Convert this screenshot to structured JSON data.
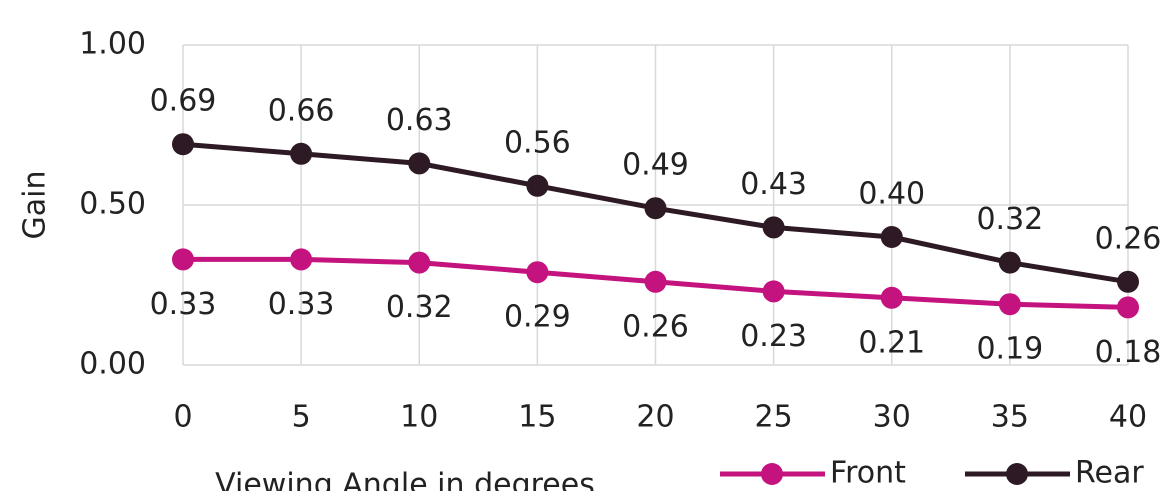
{
  "chart_data": {
    "type": "line",
    "x_label": "Viewing Angle in degrees",
    "y_label": "Gain",
    "x": [
      0,
      5,
      10,
      15,
      20,
      25,
      30,
      35,
      40
    ],
    "xlim": [
      0,
      40
    ],
    "xticks": [
      0,
      5,
      10,
      15,
      20,
      25,
      30,
      35,
      40
    ],
    "ylim": [
      0,
      1
    ],
    "yticks": [
      {
        "value": 0,
        "label": "0.00"
      },
      {
        "value": 0.5,
        "label": "0.50"
      },
      {
        "value": 1,
        "label": "1.00"
      }
    ],
    "grid": true,
    "legend": "bottom-right",
    "series": [
      {
        "name": "Front",
        "color": "#c4127f",
        "values": [
          0.33,
          0.33,
          0.32,
          0.29,
          0.26,
          0.23,
          0.21,
          0.19,
          0.18
        ],
        "value_labels": [
          "0.33",
          "0.33",
          "0.32",
          "0.29",
          "0.26",
          "0.23",
          "0.21",
          "0.19",
          "0.18"
        ]
      },
      {
        "name": "Rear",
        "color": "#2d1a24",
        "values": [
          0.69,
          0.66,
          0.63,
          0.56,
          0.49,
          0.43,
          0.4,
          0.32,
          0.26
        ],
        "value_labels": [
          "0.69",
          "0.66",
          "0.63",
          "0.56",
          "0.49",
          "0.43",
          "0.40",
          "0.32",
          "0.26"
        ]
      }
    ]
  }
}
